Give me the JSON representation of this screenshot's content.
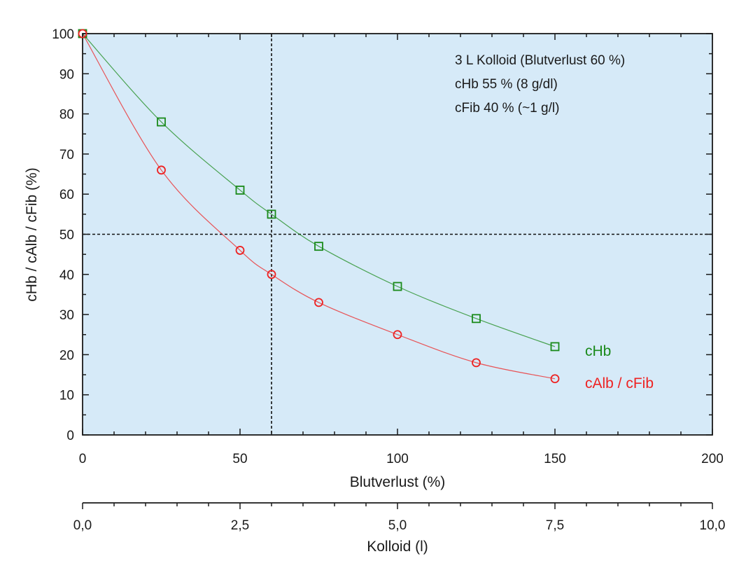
{
  "chart_data": {
    "type": "scatter",
    "xlabel": "Blutverlust (%)",
    "ylabel": "cHb / cAlb / cFib (%)",
    "xlim": [
      0,
      200
    ],
    "ylim": [
      0,
      100
    ],
    "x_ticks": [
      "0",
      "50",
      "100",
      "150",
      "200"
    ],
    "y_ticks": [
      "0",
      "10",
      "20",
      "30",
      "40",
      "50",
      "60",
      "70",
      "80",
      "90",
      "100"
    ],
    "secondary_x_axis": {
      "label": "Kolloid (l)",
      "lim": [
        0,
        10
      ],
      "ticks": [
        "0,0",
        "2,5",
        "5,0",
        "7,5",
        "10,0"
      ]
    },
    "grid": false,
    "background_color": "#d6eaf8",
    "reference_lines": {
      "x": 60,
      "y": 50
    },
    "annotations": [
      "3 L Kolloid (Blutverlust 60 %)",
      "cHb 55 % (8 g/dl)",
      "cFib 40 % (~1 g/l)"
    ],
    "series": [
      {
        "name": "cHb",
        "color": "#1a8a1a",
        "marker": "square",
        "x": [
          0,
          25,
          50,
          60,
          75,
          100,
          125,
          150
        ],
        "y": [
          100,
          78,
          61,
          55,
          47,
          37,
          29,
          22
        ]
      },
      {
        "name": "cAlb / cFib",
        "color": "#ee2222",
        "marker": "circle",
        "x": [
          0,
          25,
          50,
          60,
          75,
          100,
          125,
          150
        ],
        "y": [
          100,
          66,
          46,
          40,
          33,
          25,
          18,
          14
        ]
      }
    ]
  }
}
